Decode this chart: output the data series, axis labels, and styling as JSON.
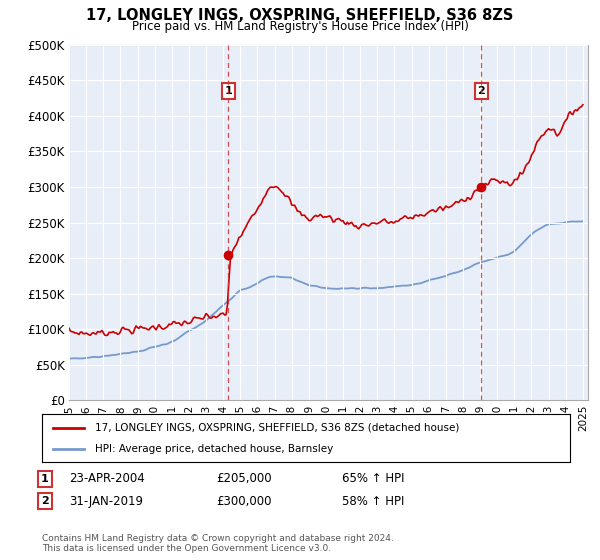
{
  "title": "17, LONGLEY INGS, OXSPRING, SHEFFIELD, S36 8ZS",
  "subtitle": "Price paid vs. HM Land Registry's House Price Index (HPI)",
  "ylim": [
    0,
    500000
  ],
  "yticks": [
    0,
    50000,
    100000,
    150000,
    200000,
    250000,
    300000,
    350000,
    400000,
    450000,
    500000
  ],
  "ytick_labels": [
    "£0",
    "£50K",
    "£100K",
    "£150K",
    "£200K",
    "£250K",
    "£300K",
    "£350K",
    "£400K",
    "£450K",
    "£500K"
  ],
  "sale1": {
    "date_num": 2004.3,
    "price": 205000,
    "label": "1",
    "date_str": "23-APR-2004",
    "pct": "65%"
  },
  "sale2": {
    "date_num": 2019.08,
    "price": 300000,
    "label": "2",
    "date_str": "31-JAN-2019",
    "pct": "58%"
  },
  "legend_house": "17, LONGLEY INGS, OXSPRING, SHEFFIELD, S36 8ZS (detached house)",
  "legend_hpi": "HPI: Average price, detached house, Barnsley",
  "footer": "Contains HM Land Registry data © Crown copyright and database right 2024.\nThis data is licensed under the Open Government Licence v3.0.",
  "house_color": "#cc0000",
  "hpi_color": "#7799cc",
  "dashed_color": "#cc3333",
  "bg_color": "#ffffff",
  "chart_bg": "#e8eef8",
  "grid_color": "#ffffff"
}
